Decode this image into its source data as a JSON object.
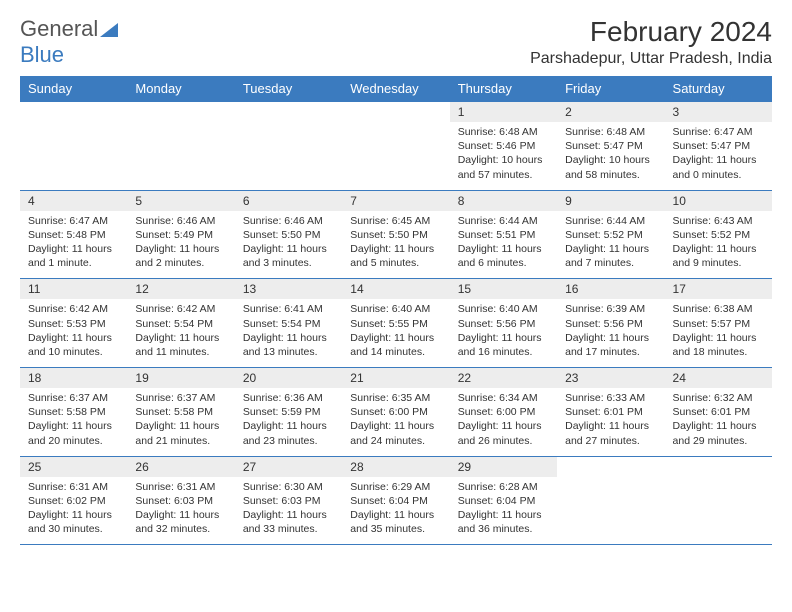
{
  "logo": {
    "part1": "General",
    "part2": "Blue"
  },
  "title": "February 2024",
  "location": "Parshadepur, Uttar Pradesh, India",
  "colors": {
    "header_bg": "#3b7bbf",
    "header_text": "#ffffff",
    "daynum_bg": "#ededed",
    "border": "#3b7bbf",
    "body_text": "#333333",
    "page_bg": "#ffffff"
  },
  "typography": {
    "title_fontsize": 28,
    "location_fontsize": 16,
    "header_fontsize": 13,
    "daynum_fontsize": 12,
    "detail_fontsize": 10.5
  },
  "day_headers": [
    "Sunday",
    "Monday",
    "Tuesday",
    "Wednesday",
    "Thursday",
    "Friday",
    "Saturday"
  ],
  "weeks": [
    [
      null,
      null,
      null,
      null,
      {
        "n": "1",
        "sunrise": "6:48 AM",
        "sunset": "5:46 PM",
        "daylight": "10 hours and 57 minutes."
      },
      {
        "n": "2",
        "sunrise": "6:48 AM",
        "sunset": "5:47 PM",
        "daylight": "10 hours and 58 minutes."
      },
      {
        "n": "3",
        "sunrise": "6:47 AM",
        "sunset": "5:47 PM",
        "daylight": "11 hours and 0 minutes."
      }
    ],
    [
      {
        "n": "4",
        "sunrise": "6:47 AM",
        "sunset": "5:48 PM",
        "daylight": "11 hours and 1 minute."
      },
      {
        "n": "5",
        "sunrise": "6:46 AM",
        "sunset": "5:49 PM",
        "daylight": "11 hours and 2 minutes."
      },
      {
        "n": "6",
        "sunrise": "6:46 AM",
        "sunset": "5:50 PM",
        "daylight": "11 hours and 3 minutes."
      },
      {
        "n": "7",
        "sunrise": "6:45 AM",
        "sunset": "5:50 PM",
        "daylight": "11 hours and 5 minutes."
      },
      {
        "n": "8",
        "sunrise": "6:44 AM",
        "sunset": "5:51 PM",
        "daylight": "11 hours and 6 minutes."
      },
      {
        "n": "9",
        "sunrise": "6:44 AM",
        "sunset": "5:52 PM",
        "daylight": "11 hours and 7 minutes."
      },
      {
        "n": "10",
        "sunrise": "6:43 AM",
        "sunset": "5:52 PM",
        "daylight": "11 hours and 9 minutes."
      }
    ],
    [
      {
        "n": "11",
        "sunrise": "6:42 AM",
        "sunset": "5:53 PM",
        "daylight": "11 hours and 10 minutes."
      },
      {
        "n": "12",
        "sunrise": "6:42 AM",
        "sunset": "5:54 PM",
        "daylight": "11 hours and 11 minutes."
      },
      {
        "n": "13",
        "sunrise": "6:41 AM",
        "sunset": "5:54 PM",
        "daylight": "11 hours and 13 minutes."
      },
      {
        "n": "14",
        "sunrise": "6:40 AM",
        "sunset": "5:55 PM",
        "daylight": "11 hours and 14 minutes."
      },
      {
        "n": "15",
        "sunrise": "6:40 AM",
        "sunset": "5:56 PM",
        "daylight": "11 hours and 16 minutes."
      },
      {
        "n": "16",
        "sunrise": "6:39 AM",
        "sunset": "5:56 PM",
        "daylight": "11 hours and 17 minutes."
      },
      {
        "n": "17",
        "sunrise": "6:38 AM",
        "sunset": "5:57 PM",
        "daylight": "11 hours and 18 minutes."
      }
    ],
    [
      {
        "n": "18",
        "sunrise": "6:37 AM",
        "sunset": "5:58 PM",
        "daylight": "11 hours and 20 minutes."
      },
      {
        "n": "19",
        "sunrise": "6:37 AM",
        "sunset": "5:58 PM",
        "daylight": "11 hours and 21 minutes."
      },
      {
        "n": "20",
        "sunrise": "6:36 AM",
        "sunset": "5:59 PM",
        "daylight": "11 hours and 23 minutes."
      },
      {
        "n": "21",
        "sunrise": "6:35 AM",
        "sunset": "6:00 PM",
        "daylight": "11 hours and 24 minutes."
      },
      {
        "n": "22",
        "sunrise": "6:34 AM",
        "sunset": "6:00 PM",
        "daylight": "11 hours and 26 minutes."
      },
      {
        "n": "23",
        "sunrise": "6:33 AM",
        "sunset": "6:01 PM",
        "daylight": "11 hours and 27 minutes."
      },
      {
        "n": "24",
        "sunrise": "6:32 AM",
        "sunset": "6:01 PM",
        "daylight": "11 hours and 29 minutes."
      }
    ],
    [
      {
        "n": "25",
        "sunrise": "6:31 AM",
        "sunset": "6:02 PM",
        "daylight": "11 hours and 30 minutes."
      },
      {
        "n": "26",
        "sunrise": "6:31 AM",
        "sunset": "6:03 PM",
        "daylight": "11 hours and 32 minutes."
      },
      {
        "n": "27",
        "sunrise": "6:30 AM",
        "sunset": "6:03 PM",
        "daylight": "11 hours and 33 minutes."
      },
      {
        "n": "28",
        "sunrise": "6:29 AM",
        "sunset": "6:04 PM",
        "daylight": "11 hours and 35 minutes."
      },
      {
        "n": "29",
        "sunrise": "6:28 AM",
        "sunset": "6:04 PM",
        "daylight": "11 hours and 36 minutes."
      },
      null,
      null
    ]
  ],
  "labels": {
    "sunrise": "Sunrise:",
    "sunset": "Sunset:",
    "daylight": "Daylight:"
  }
}
